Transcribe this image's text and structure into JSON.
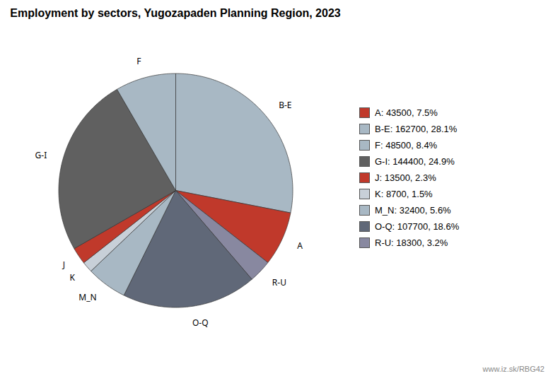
{
  "chart_data": {
    "type": "pie",
    "title": "Employment by sectors, Yugozapaden Planning Region, 2023",
    "categories": [
      "B-E",
      "A",
      "R-U",
      "O-Q",
      "M_N",
      "K",
      "J",
      "G-I",
      "F"
    ],
    "values": [
      162700,
      43500,
      18300,
      107700,
      32400,
      8700,
      13500,
      144400,
      48500
    ],
    "colors": [
      "#a8b8c4",
      "#c0392b",
      "#8888a0",
      "#606878",
      "#a8b8c4",
      "#c8d0d8",
      "#c0392b",
      "#606060",
      "#a8b8c4"
    ],
    "legend": "right",
    "legend_labels": [
      "A: 43500, 7.5%",
      "B-E: 162700, 28.1%",
      "F: 48500, 8.4%",
      "G-I: 144400, 24.9%",
      "J: 13500, 2.3%",
      "K: 8700, 1.5%",
      "M_N: 32400, 5.6%",
      "O-Q: 107700, 18.6%",
      "R-U: 18300, 3.2%"
    ],
    "legend_colors": [
      "#c0392b",
      "#a8b8c4",
      "#a8b8c4",
      "#606060",
      "#c0392b",
      "#c8d0d8",
      "#a8b8c4",
      "#606878",
      "#8888a0"
    ],
    "annotation": "www.iz.sk/RBG42"
  }
}
